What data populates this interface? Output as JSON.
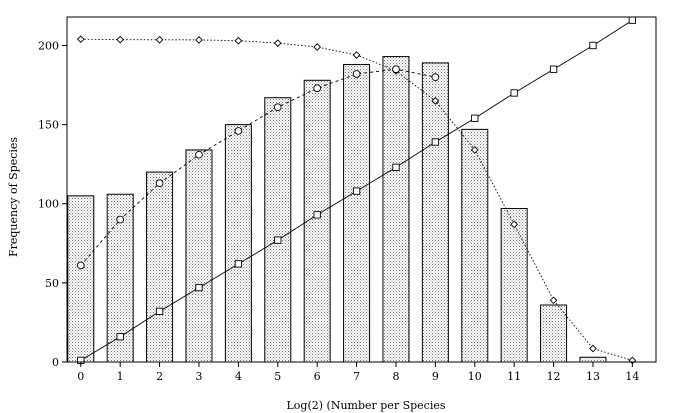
{
  "chart_data": {
    "type": "bar",
    "title": "",
    "xlabel": "Log(2) (Number per Species",
    "ylabel": "Frequency of Species",
    "x": [
      0,
      1,
      2,
      3,
      4,
      5,
      6,
      7,
      8,
      9,
      10,
      11,
      12,
      13,
      14
    ],
    "xlim": [
      -0.35,
      14.6
    ],
    "ylim": [
      0,
      218
    ],
    "xticks": [
      "0",
      "1",
      "2",
      "3",
      "4",
      "5",
      "6",
      "7",
      "8",
      "9",
      "10",
      "11",
      "12",
      "13",
      "14"
    ],
    "yticks": [
      "0",
      "50",
      "100",
      "150",
      "200"
    ],
    "grid": false,
    "legend": "none",
    "bars": {
      "x": [
        0,
        1,
        2,
        3,
        4,
        5,
        6,
        7,
        8,
        9,
        10,
        11,
        12,
        13
      ],
      "values": [
        105,
        106,
        120,
        134,
        150,
        167,
        178,
        188,
        193,
        189,
        147,
        97,
        36,
        3
      ],
      "fill": "#d9d9d9",
      "stroke": "#000000"
    },
    "lines": [
      {
        "marker": "diamond",
        "style": "dotted",
        "x": [
          0,
          1,
          2,
          3,
          4,
          5,
          6,
          7,
          8,
          9,
          10,
          11,
          12,
          13,
          14
        ],
        "values": [
          204,
          203.7,
          203.6,
          203.5,
          203,
          201.5,
          199,
          194,
          184,
          165,
          134,
          87,
          39,
          8.5,
          1
        ]
      },
      {
        "marker": "circle",
        "style": "dashed",
        "x": [
          0,
          1,
          2,
          3,
          4,
          5,
          6,
          7,
          8,
          9
        ],
        "values": [
          61,
          90,
          113,
          131,
          146,
          161,
          173,
          182,
          185,
          180
        ]
      },
      {
        "marker": "square",
        "style": "solid",
        "x": [
          0,
          1,
          2,
          3,
          4,
          5,
          6,
          7,
          8,
          9,
          10,
          11,
          12,
          13,
          14
        ],
        "values": [
          1,
          16,
          32,
          47,
          62,
          77,
          93,
          108,
          123,
          139,
          154,
          170,
          185,
          200,
          216
        ]
      }
    ]
  }
}
